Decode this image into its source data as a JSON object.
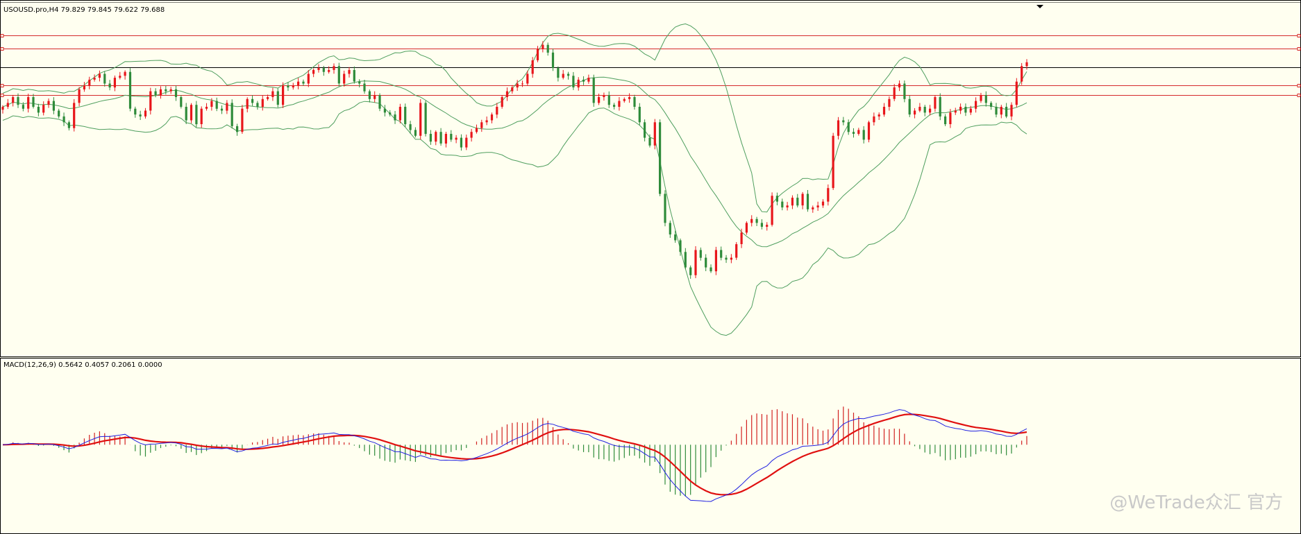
{
  "main_panel": {
    "header": "USOUSD.pro,H4  79.829 79.845 79.622 79.688"
  },
  "macd_panel": {
    "header": "MACD(12,26,9) 0.5642 0.4057 0.2061 0.0000"
  },
  "watermark": "@WeTrade众汇 官方",
  "colors": {
    "background": "#FFFFF0",
    "bull_candle": "#E8161B",
    "bear_candle": "#2E8B3A",
    "bollinger": "#4E9E5E",
    "level_line": "#D42A2A",
    "current_line": "#000000",
    "macd_main": "#1F1FE0",
    "macd_signal": "#E01010",
    "hist_positive": "#D22020",
    "hist_negative": "#2E8B3A"
  },
  "chart_data": [
    {
      "type": "candlestick",
      "symbol": "USOUSD.pro",
      "timeframe": "H4",
      "last_bar": {
        "open": 79.829,
        "high": 79.845,
        "low": 79.622,
        "close": 79.688
      },
      "ylim": [
        66.0,
        83.2
      ],
      "horizontal_levels": [
        82.1,
        81.4,
        79.5,
        79.0
      ],
      "current_price": 80.45,
      "closes": [
        78.4,
        78.6,
        78.9,
        78.5,
        78.3,
        78.9,
        78.4,
        78.1,
        78.5,
        78.7,
        78.2,
        77.9,
        77.6,
        77.3,
        78.6,
        79.3,
        79.5,
        79.8,
        79.9,
        80.1,
        79.6,
        79.4,
        79.9,
        80.0,
        80.2,
        78.3,
        78.0,
        77.9,
        78.2,
        79.2,
        79.0,
        79.3,
        79.2,
        79.3,
        78.9,
        78.4,
        77.7,
        78.5,
        77.5,
        78.3,
        78.4,
        78.7,
        78.3,
        78.2,
        78.6,
        77.4,
        77.1,
        78.3,
        78.8,
        78.6,
        78.4,
        78.8,
        78.9,
        79.2,
        78.5,
        79.5,
        79.4,
        79.5,
        79.7,
        79.6,
        80.1,
        80.3,
        80.4,
        80.2,
        80.3,
        80.5,
        79.6,
        80.1,
        80.3,
        79.7,
        79.6,
        79.2,
        78.8,
        79.0,
        78.3,
        78.1,
        78.0,
        77.7,
        78.4,
        77.5,
        77.2,
        76.9,
        78.6,
        77.0,
        76.6,
        77.1,
        76.5,
        77.0,
        76.7,
        76.8,
        76.3,
        76.8,
        77.1,
        77.3,
        77.6,
        77.7,
        78.0,
        78.4,
        78.9,
        79.2,
        79.4,
        79.6,
        79.6,
        80.1,
        80.8,
        81.4,
        81.6,
        81.2,
        80.4,
        79.9,
        80.1,
        80.0,
        79.4,
        79.8,
        79.7,
        79.9,
        78.6,
        78.9,
        79.0,
        78.5,
        78.4,
        78.7,
        78.8,
        78.9,
        78.4,
        77.6,
        76.8,
        76.4,
        77.6,
        73.9,
        72.4,
        71.8,
        71.5,
        70.9,
        70.1,
        69.7,
        71.0,
        70.6,
        70.1,
        69.9,
        71.0,
        70.6,
        70.5,
        70.6,
        71.3,
        71.9,
        72.4,
        72.6,
        72.4,
        72.2,
        72.3,
        73.8,
        73.5,
        73.2,
        73.3,
        73.7,
        73.3,
        73.9,
        73.1,
        73.2,
        73.3,
        73.5,
        74.2,
        76.9,
        77.7,
        77.6,
        77.1,
        77.0,
        77.2,
        76.7,
        77.6,
        77.9,
        78.0,
        78.4,
        78.8,
        79.4,
        79.6,
        78.8,
        78.0,
        78.2,
        78.4,
        78.1,
        78.3,
        78.9,
        77.9,
        77.5,
        78.1,
        78.2,
        78.4,
        78.1,
        78.3,
        78.7,
        79.0,
        78.6,
        78.4,
        78.0,
        78.4,
        77.9,
        78.5,
        79.7,
        80.5,
        80.7
      ]
    },
    {
      "type": "line",
      "name": "MACD(12,26,9)",
      "ylim": [
        -3.4,
        2.9
      ],
      "zero_level": 0.0,
      "last_values": {
        "main": 0.5642,
        "signal": 0.4057
      }
    }
  ]
}
